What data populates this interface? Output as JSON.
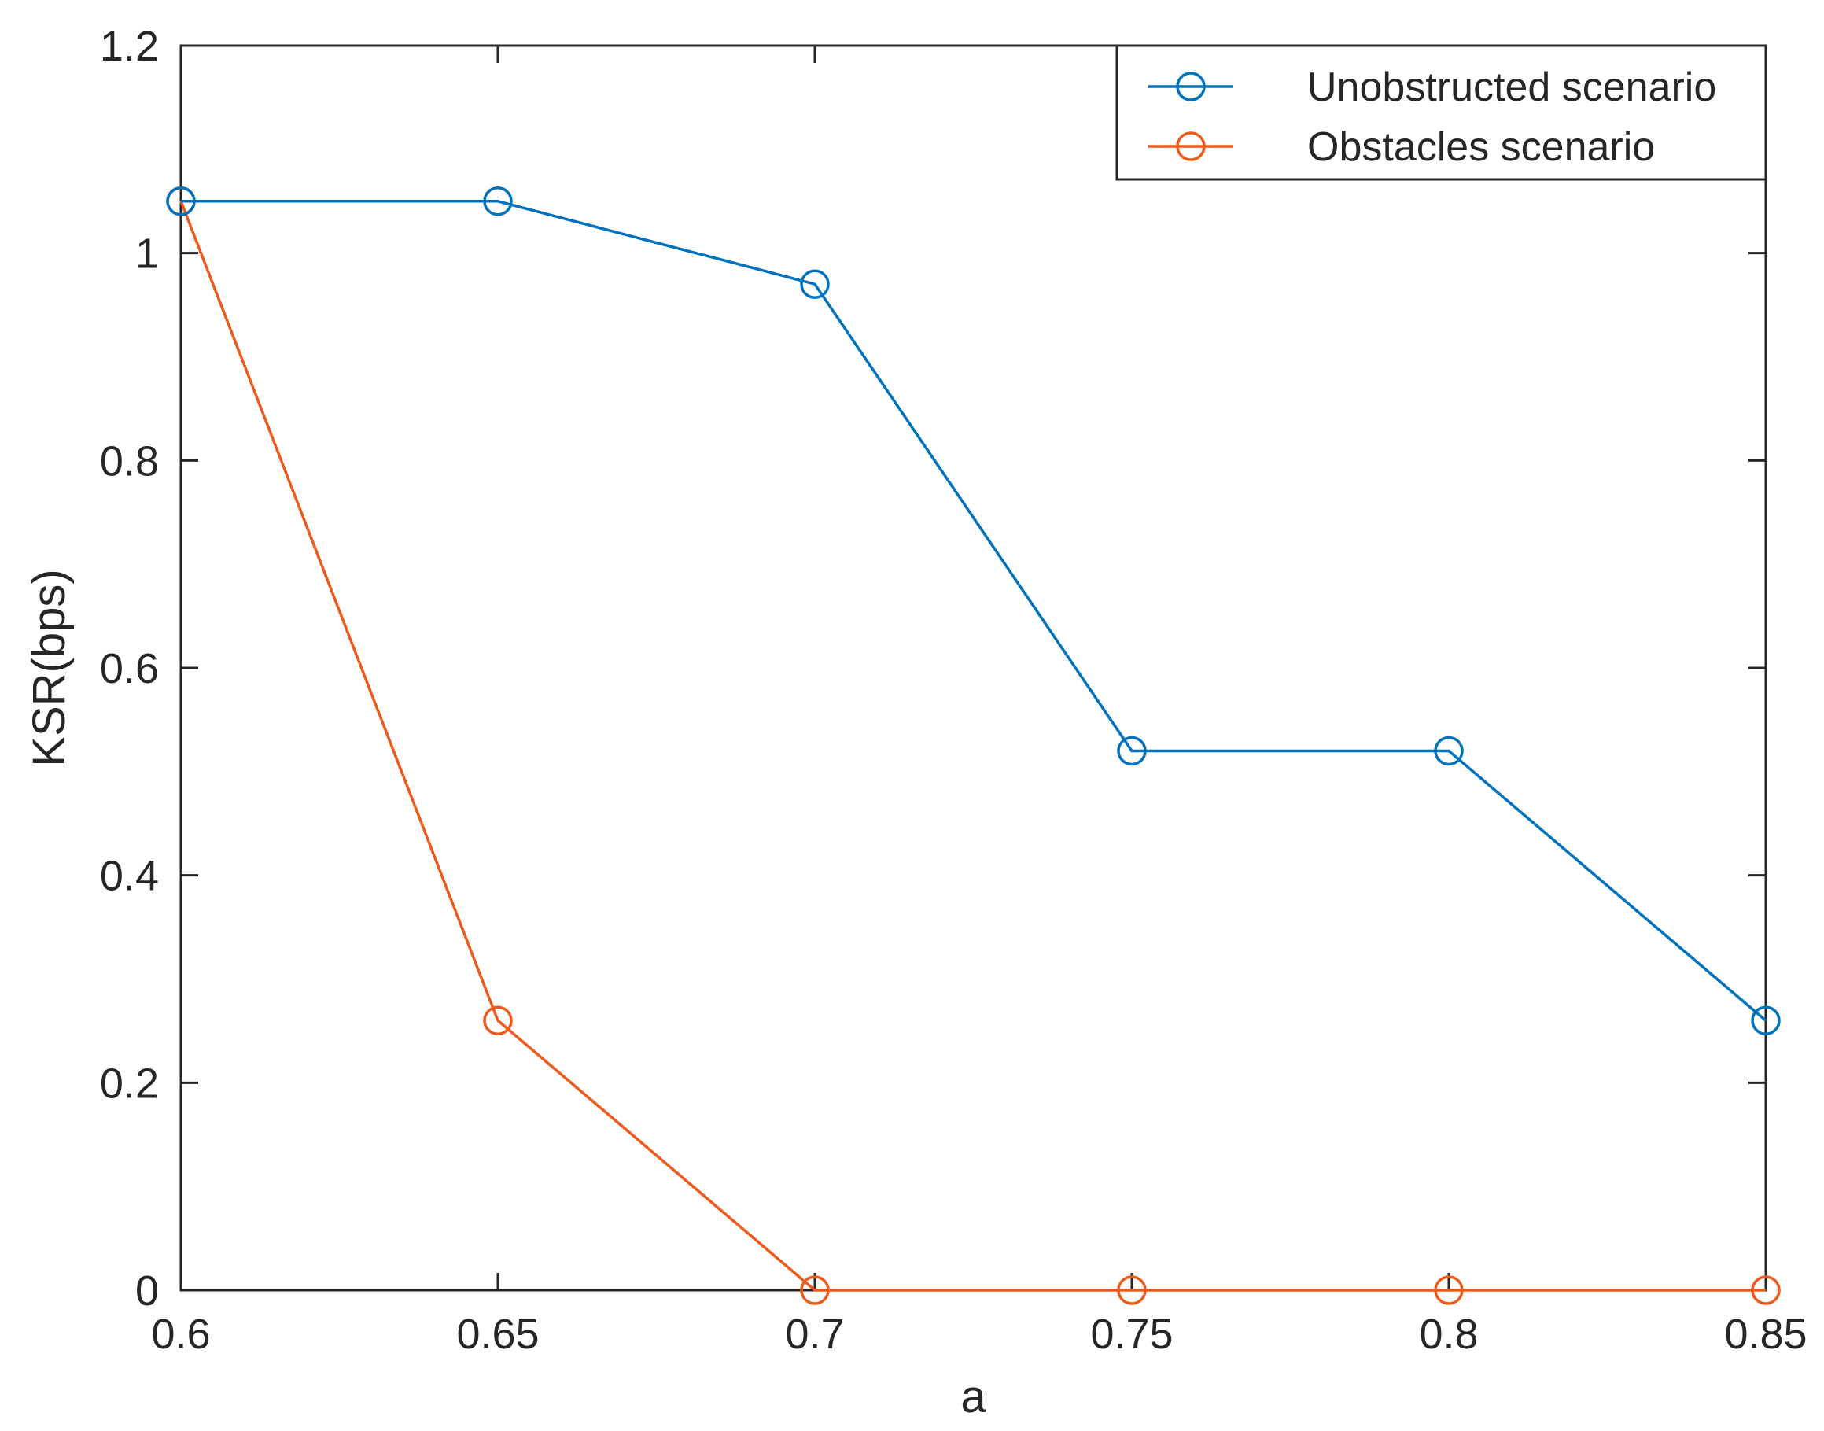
{
  "chart_data": {
    "type": "line",
    "title": "",
    "xlabel": "a",
    "ylabel": "KSR(bps)",
    "x": [
      0.6,
      0.65,
      0.7,
      0.75,
      0.8,
      0.85
    ],
    "xlim": [
      0.6,
      0.85
    ],
    "ylim": [
      0,
      1.2
    ],
    "xticks": [
      "0.6",
      "0.65",
      "0.7",
      "0.75",
      "0.8",
      "0.85"
    ],
    "yticks": [
      "0",
      "0.2",
      "0.4",
      "0.6",
      "0.8",
      "1",
      "1.2"
    ],
    "xtick_values": [
      0.6,
      0.65,
      0.7,
      0.75,
      0.8,
      0.85
    ],
    "ytick_values": [
      0,
      0.2,
      0.4,
      0.6,
      0.8,
      1.0,
      1.2
    ],
    "grid": false,
    "legend_position": "top-right",
    "marker": "circle",
    "series": [
      {
        "name": "Unobstructed scenario",
        "color": "#0072BD",
        "values": [
          1.05,
          1.05,
          0.97,
          0.52,
          0.52,
          0.26
        ]
      },
      {
        "name": "Obstacles scenario",
        "color": "#EE5A1C",
        "values": [
          1.05,
          0.26,
          0.0,
          0.0,
          0.0,
          0.0
        ]
      }
    ]
  }
}
